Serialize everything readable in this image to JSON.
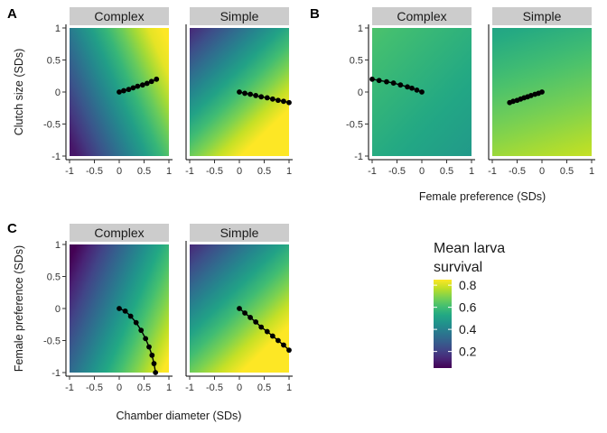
{
  "colors": {
    "strip_bg": "#cccccc",
    "point_color": "#000000",
    "colormap": "viridis"
  },
  "legend": {
    "title_line1": "Mean larva",
    "title_line2": "survival",
    "ticks": [
      "0.8",
      "0.6",
      "0.4",
      "0.2"
    ],
    "tick_values": [
      0.8,
      0.6,
      0.4,
      0.2
    ],
    "range": [
      0.05,
      0.85
    ]
  },
  "chart_data": [
    {
      "panel_label": "A",
      "type": "heatmap",
      "ylabel": "Clutch size (SDs)",
      "xlabel": "",
      "xlim": [
        -1,
        1
      ],
      "ylim": [
        -1,
        1
      ],
      "xticks": [
        "-1",
        "-0.5",
        "0",
        "0.5",
        "1"
      ],
      "yticks": [
        "1",
        "0.5",
        "0",
        "-0.5",
        "-1"
      ],
      "facets": [
        {
          "strip": "Complex",
          "surface": {
            "intercept": 0.5,
            "slope_x": 0.3,
            "slope_y": 0.1
          },
          "path": {
            "x": [
              0,
              0.09,
              0.19,
              0.28,
              0.37,
              0.47,
              0.56,
              0.65,
              0.75
            ],
            "y": [
              0,
              0.02,
              0.04,
              0.065,
              0.09,
              0.11,
              0.135,
              0.165,
              0.2
            ]
          }
        },
        {
          "strip": "Simple",
          "surface": {
            "intercept": 0.6,
            "slope_x": 0.25,
            "slope_y": -0.2
          },
          "path": {
            "x": [
              0,
              0.11,
              0.22,
              0.33,
              0.44,
              0.56,
              0.67,
              0.78,
              0.89,
              1
            ],
            "y": [
              0,
              -0.02,
              -0.035,
              -0.055,
              -0.075,
              -0.09,
              -0.11,
              -0.13,
              -0.145,
              -0.165
            ]
          }
        }
      ]
    },
    {
      "panel_label": "B",
      "type": "heatmap",
      "ylabel": "",
      "xlabel": "Female preference (SDs)",
      "xlim": [
        -1,
        1
      ],
      "ylim": [
        -1,
        1
      ],
      "xticks": [
        "-1",
        "-0.5",
        "0",
        "0.5",
        "1"
      ],
      "yticks": [
        "1",
        "0.5",
        "0",
        "-0.5",
        "-1"
      ],
      "facets": [
        {
          "strip": "Complex",
          "surface": {
            "intercept": 0.55,
            "slope_x": -0.04,
            "slope_y": 0.03
          },
          "path": {
            "x": [
              -1,
              -0.86,
              -0.71,
              -0.57,
              -0.43,
              -0.29,
              -0.2,
              -0.1,
              0
            ],
            "y": [
              0.2,
              0.18,
              0.16,
              0.14,
              0.11,
              0.08,
              0.06,
              0.03,
              0
            ]
          }
        },
        {
          "strip": "Simple",
          "surface": {
            "intercept": 0.65,
            "slope_x": 0.04,
            "slope_y": -0.1
          },
          "path": {
            "x": [
              -0.65,
              -0.58,
              -0.5,
              -0.43,
              -0.36,
              -0.29,
              -0.22,
              -0.14,
              -0.07,
              0
            ],
            "y": [
              -0.165,
              -0.145,
              -0.13,
              -0.11,
              -0.09,
              -0.075,
              -0.055,
              -0.035,
              -0.02,
              0
            ]
          }
        }
      ]
    },
    {
      "panel_label": "C",
      "type": "heatmap",
      "ylabel": "Female preference (SDs)",
      "xlabel": "Chamber diameter (SDs)",
      "xlim": [
        -1,
        1
      ],
      "ylim": [
        -1,
        1
      ],
      "xticks": [
        "-1",
        "-0.5",
        "0",
        "0.5",
        "1"
      ],
      "yticks": [
        "1",
        "0.5",
        "0",
        "-0.5",
        "-1"
      ],
      "facets": [
        {
          "strip": "Complex",
          "surface": {
            "intercept": 0.45,
            "slope_x": 0.3,
            "slope_y": -0.1
          },
          "path": {
            "x": [
              0,
              0.12,
              0.23,
              0.34,
              0.44,
              0.53,
              0.6,
              0.66,
              0.7,
              0.73
            ],
            "y": [
              0,
              -0.04,
              -0.12,
              -0.22,
              -0.34,
              -0.47,
              -0.6,
              -0.73,
              -0.86,
              -1
            ]
          }
        },
        {
          "strip": "Simple",
          "surface": {
            "intercept": 0.6,
            "slope_x": 0.25,
            "slope_y": -0.2
          },
          "path": {
            "x": [
              0,
              0.11,
              0.22,
              0.33,
              0.44,
              0.56,
              0.67,
              0.78,
              0.89,
              1
            ],
            "y": [
              0,
              -0.07,
              -0.14,
              -0.21,
              -0.29,
              -0.36,
              -0.43,
              -0.5,
              -0.57,
              -0.65
            ]
          }
        }
      ]
    }
  ]
}
